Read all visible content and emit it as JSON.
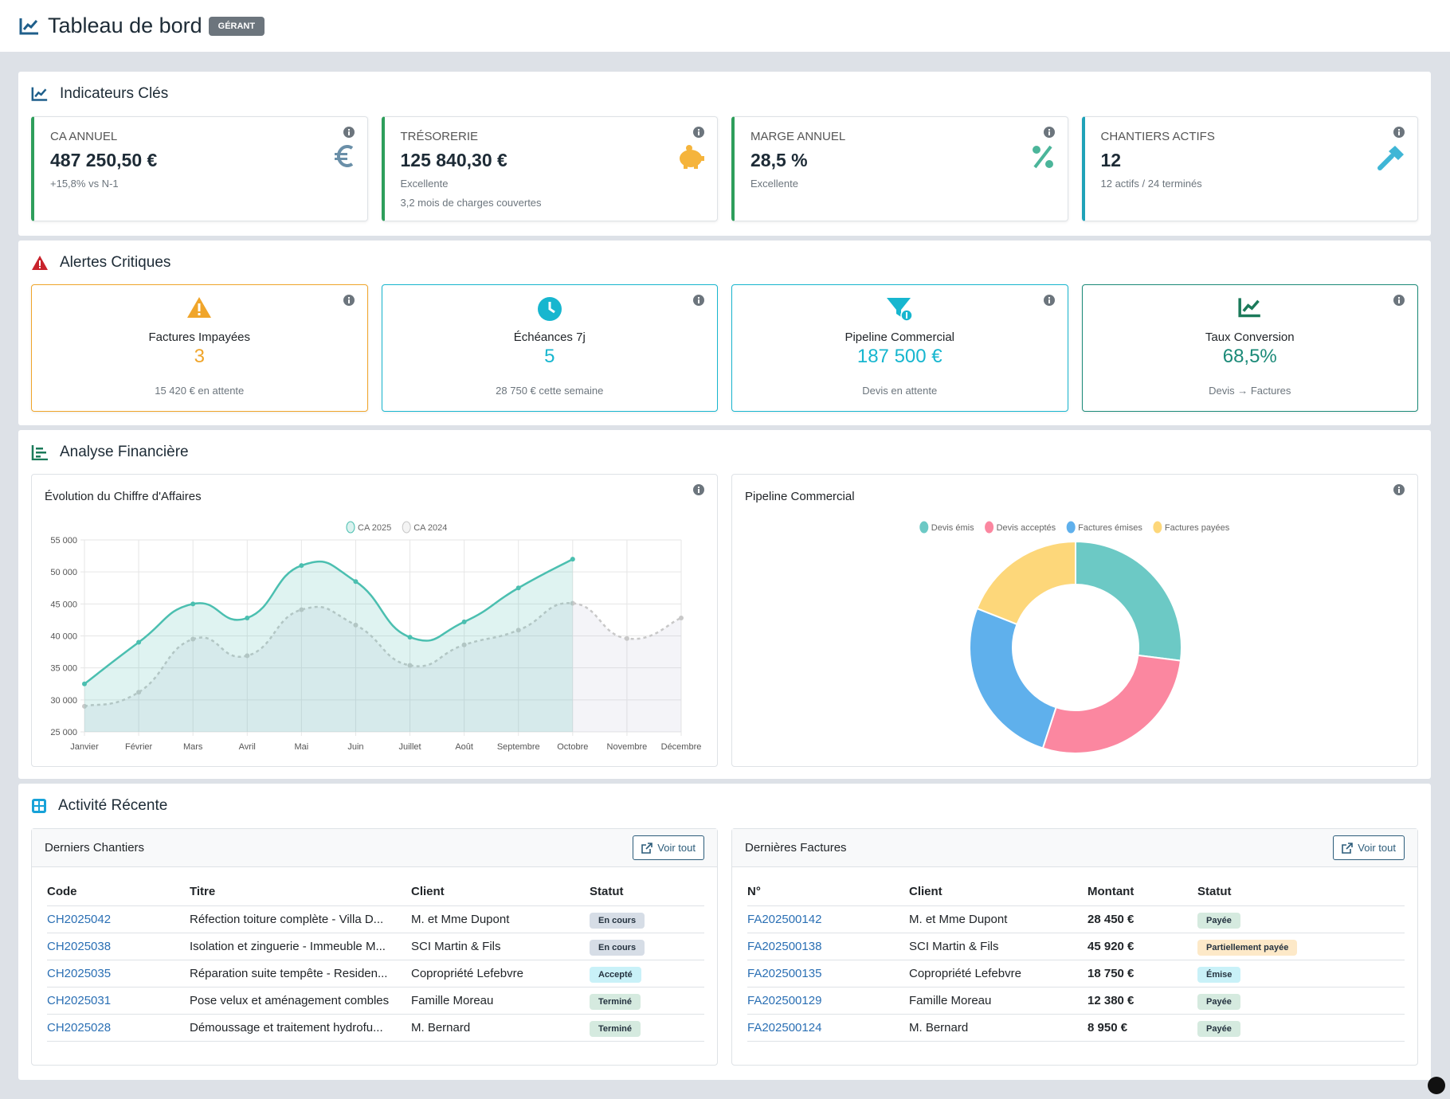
{
  "header": {
    "title": "Tableau de bord",
    "badge": "GÉRANT"
  },
  "kpis": {
    "title": "Indicateurs Clés",
    "cards": [
      {
        "label": "CA ANNUEL",
        "value": "487 250,50 €",
        "lines": [
          "+15,8% vs N-1"
        ],
        "color": "#2e9e5b"
      },
      {
        "label": "TRÉSORERIE",
        "value": "125 840,30 €",
        "lines": [
          "Excellente",
          "3,2 mois de charges couvertes"
        ],
        "color": "#2e9e5b"
      },
      {
        "label": "MARGE ANNUEL",
        "value": "28,5 %",
        "lines": [
          "Excellente"
        ],
        "color": "#2e9e5b"
      },
      {
        "label": "CHANTIERS ACTIFS",
        "value": "12",
        "lines": [
          "12 actifs / 24 terminés"
        ],
        "color": "#1fa2b8"
      }
    ]
  },
  "alerts": {
    "title": "Alertes Critiques",
    "cards": [
      {
        "title": "Factures Impayées",
        "value": "3",
        "note": "15 420 € en attente",
        "color": "#f0a52a"
      },
      {
        "title": "Échéances 7j",
        "value": "5",
        "note": "28 750 € cette semaine",
        "color": "#17b6cf"
      },
      {
        "title": "Pipeline Commercial",
        "value": "187 500 €",
        "note": "Devis en attente",
        "color": "#17b6cf"
      },
      {
        "title": "Taux Conversion",
        "value": "68,5%",
        "note": "Devis → Factures",
        "color": "#1b8a78"
      }
    ]
  },
  "analysis": {
    "title": "Analyse Financière"
  },
  "chart_data": [
    {
      "type": "line",
      "title": "Évolution du Chiffre d'Affaires",
      "categories": [
        "Janvier",
        "Février",
        "Mars",
        "Avril",
        "Mai",
        "Juin",
        "Juillet",
        "Août",
        "Septembre",
        "Octobre",
        "Novembre",
        "Décembre"
      ],
      "series": [
        {
          "name": "CA 2025",
          "color": "#4bbfb0",
          "values": [
            32500,
            39000,
            45000,
            42800,
            51000,
            48500,
            39800,
            42200,
            47500,
            52000,
            null,
            null
          ]
        },
        {
          "name": "CA 2024",
          "color": "#c8c8c8",
          "values": [
            29000,
            31200,
            39500,
            36900,
            44100,
            41700,
            35400,
            38600,
            40900,
            45100,
            39600,
            42800
          ]
        }
      ],
      "ylim": [
        25000,
        55000
      ],
      "yticks": [
        {
          "value": 25000,
          "label": "25 000"
        },
        {
          "value": 30000,
          "label": "30 000"
        },
        {
          "value": 35000,
          "label": "35 000"
        },
        {
          "value": 40000,
          "label": "40 000"
        },
        {
          "value": 45000,
          "label": "45 000"
        },
        {
          "value": 50000,
          "label": "50 000"
        },
        {
          "value": 55000,
          "label": "55 000"
        }
      ],
      "grid": true
    },
    {
      "type": "doughnut",
      "title": "Pipeline Commercial",
      "categories": [
        "Devis émis",
        "Devis acceptés",
        "Factures émises",
        "Factures payées"
      ],
      "values": [
        27,
        28,
        26,
        19
      ],
      "colors": [
        "#6cc9c5",
        "#fb87a0",
        "#5fb0ec",
        "#fdd77a"
      ]
    }
  ],
  "activity": {
    "title": "Activité Récente",
    "chantiers": {
      "title": "Derniers Chantiers",
      "button": "Voir tout",
      "headers": [
        "Code",
        "Titre",
        "Client",
        "Statut"
      ],
      "rows": [
        {
          "cells": [
            "CH2025042",
            "Réfection toiture complète - Villa D...",
            "M. et Mme Dupont",
            "En cours"
          ],
          "status_color": "#d6dde6"
        },
        {
          "cells": [
            "CH2025038",
            "Isolation et zinguerie - Immeuble M...",
            "SCI Martin & Fils",
            "En cours"
          ],
          "status_color": "#d6dde6"
        },
        {
          "cells": [
            "CH2025035",
            "Réparation suite tempête - Residen...",
            "Copropriété Lefebvre",
            "Accepté"
          ],
          "status_color": "#c9f1f8"
        },
        {
          "cells": [
            "CH2025031",
            "Pose velux et aménagement combles",
            "Famille Moreau",
            "Terminé"
          ],
          "status_color": "#d5eadf"
        },
        {
          "cells": [
            "CH2025028",
            "Démoussage et traitement hydrofu...",
            "M. Bernard",
            "Terminé"
          ],
          "status_color": "#d5eadf"
        }
      ]
    },
    "factures": {
      "title": "Dernières Factures",
      "button": "Voir tout",
      "headers": [
        "N°",
        "Client",
        "Montant",
        "Statut"
      ],
      "rows": [
        {
          "cells": [
            "FA202500142",
            "M. et Mme Dupont",
            "28 450 €",
            "Payée"
          ],
          "status_color": "#d5eadf"
        },
        {
          "cells": [
            "FA202500138",
            "SCI Martin & Fils",
            "45 920 €",
            "Partiellement payée"
          ],
          "status_color": "#fde9c8"
        },
        {
          "cells": [
            "FA202500135",
            "Copropriété Lefebvre",
            "18 750 €",
            "Émise"
          ],
          "status_color": "#c9f1f8"
        },
        {
          "cells": [
            "FA202500129",
            "Famille Moreau",
            "12 380 €",
            "Payée"
          ],
          "status_color": "#d5eadf"
        },
        {
          "cells": [
            "FA202500124",
            "M. Bernard",
            "8 950 €",
            "Payée"
          ],
          "status_color": "#d5eadf"
        }
      ]
    }
  }
}
